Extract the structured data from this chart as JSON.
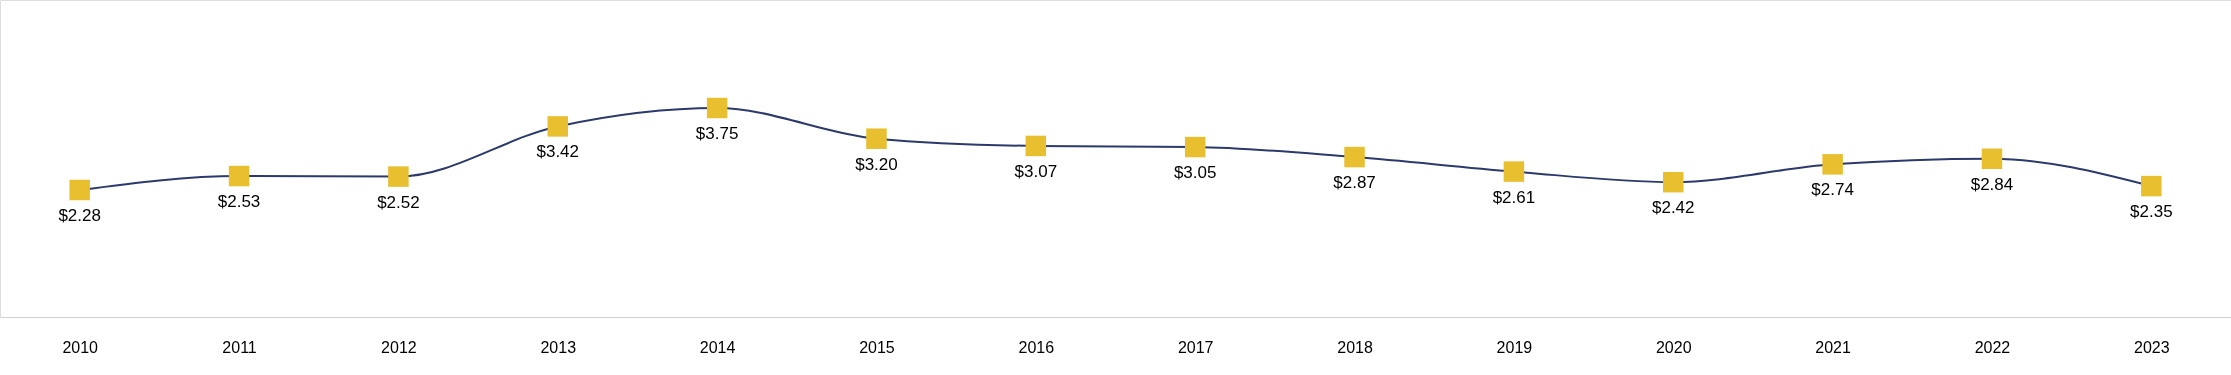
{
  "chart_data": {
    "type": "line",
    "categories": [
      "2010",
      "2011",
      "2012",
      "2013",
      "2014",
      "2015",
      "2016",
      "2017",
      "2018",
      "2019",
      "2020",
      "2021",
      "2022",
      "2023"
    ],
    "series": [
      {
        "color": "#2b3a6b",
        "values": [
          2.28,
          2.53,
          2.52,
          3.42,
          3.75,
          3.2,
          3.07,
          3.05,
          2.87,
          2.61,
          2.42,
          2.74,
          2.84,
          2.35
        ],
        "value_labels": [
          "$2.28",
          "$2.53",
          "$2.52",
          "$3.42",
          "$3.75",
          "$3.20",
          "$3.07",
          "$3.05",
          "$2.87",
          "$2.61",
          "$2.42",
          "$2.74",
          "$2.84",
          "$2.35"
        ],
        "colors": [
          "#e8bf2e",
          "#e8bf2e",
          "#e8bf2e",
          "#e8bf2e",
          "#e8bf2e",
          "#e8bf2e",
          "#e8bf2e",
          "#e8bf2e",
          "#e8bf2e",
          "#e8bf2e",
          "#e8bf2e",
          "#e8bf2e",
          "#e8bf2e",
          "#e8bf2e"
        ]
      }
    ],
    "marker": "square",
    "line_style": "solid",
    "tick_labels": "x"
  }
}
